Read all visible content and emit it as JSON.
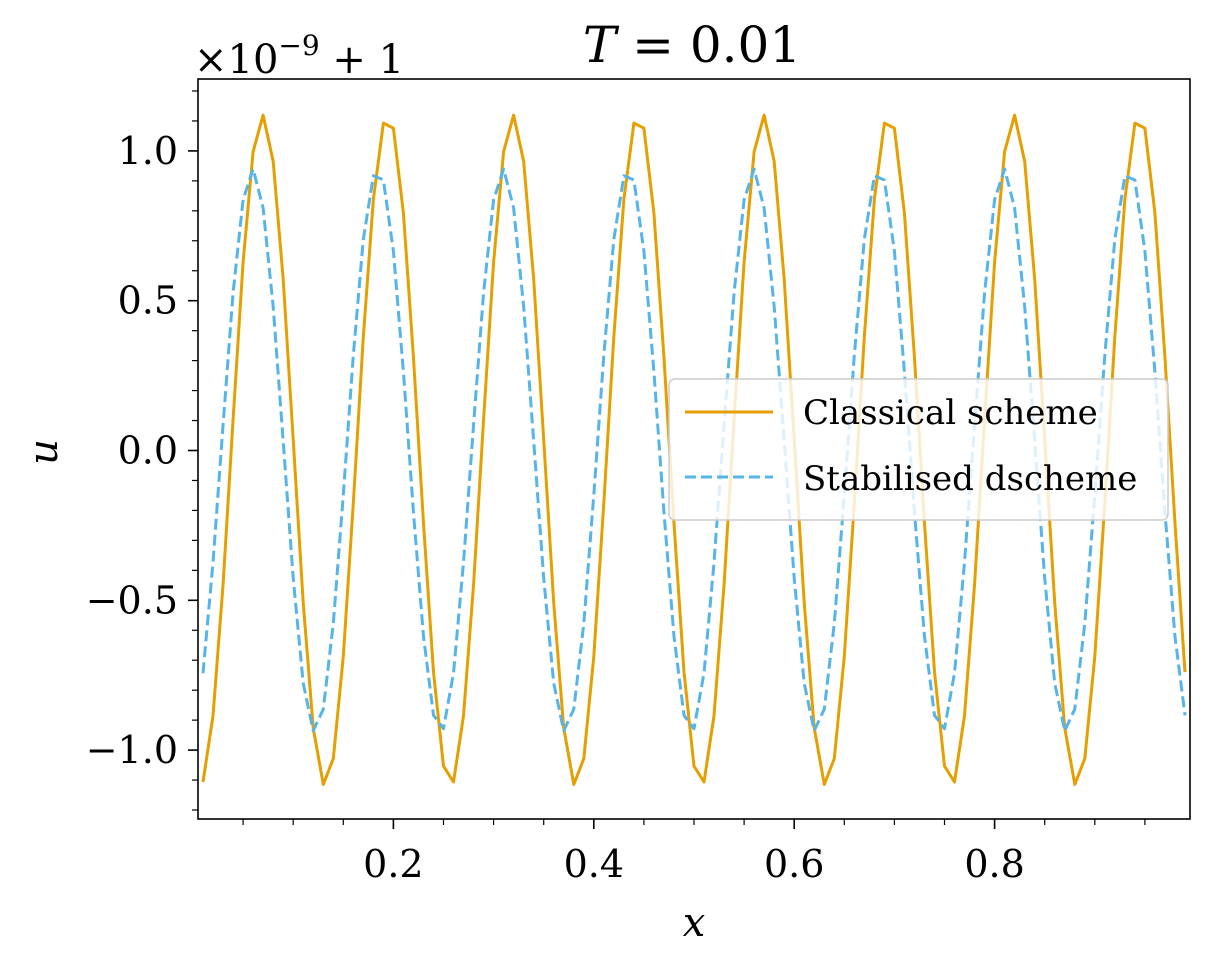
{
  "chart_data": {
    "type": "line",
    "title": "T = 0.01",
    "title_italic_part": "T",
    "title_rest": " = 0.01",
    "xlabel": "x",
    "ylabel": "u",
    "offset_text_prefix": "×10",
    "offset_text_exp": "−9",
    "offset_text_suffix": " + 1",
    "xlim": [
      0.005,
      0.995
    ],
    "ylim": [
      -1.23,
      1.24
    ],
    "x_ticks": [
      0.2,
      0.4,
      0.6,
      0.8
    ],
    "x_tick_labels": [
      "0.2",
      "0.4",
      "0.6",
      "0.8"
    ],
    "y_ticks": [
      -1.0,
      -0.5,
      0.0,
      0.5,
      1.0
    ],
    "y_tick_labels": [
      "−1.0",
      "−0.5",
      "0.0",
      "0.5",
      "1.0"
    ],
    "grid": false,
    "legend_position": "center-right",
    "series": [
      {
        "name": "Classical scheme",
        "color": "#E69F00",
        "dash": "solid",
        "amplitude": 1.12,
        "period": 0.125,
        "phase_peak_x": 0.0694,
        "samples": 100
      },
      {
        "name": "Stabilised dscheme",
        "color": "#56B4E9",
        "dash": "dashed",
        "amplitude": 0.94,
        "period": 0.125,
        "phase_peak_x": 0.0594,
        "samples": 100
      }
    ]
  }
}
